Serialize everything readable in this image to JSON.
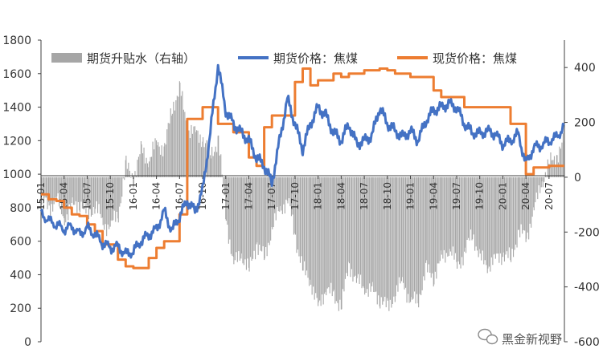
{
  "chart_data": {
    "type": "line",
    "legend": {
      "placement": "top",
      "entries": [
        "期货升贴水（右轴）",
        "期货价格：焦煤",
        "现货价格：焦煤"
      ]
    },
    "left_axis": {
      "ylim": [
        0,
        1800
      ],
      "ticks": [
        "0",
        "200",
        "400",
        "600",
        "800",
        "1000",
        "1200",
        "1400",
        "1600",
        "1800"
      ]
    },
    "right_axis": {
      "ylim": [
        -600,
        500
      ],
      "ticks": [
        "-600",
        "-400",
        "-200",
        "0",
        "200",
        "400"
      ]
    },
    "x_ticks": [
      "15-01",
      "15-04",
      "15-07",
      "15-10",
      "16-01",
      "16-04",
      "16-07",
      "16-10",
      "17-01",
      "17-04",
      "17-07",
      "17-10",
      "18-01",
      "18-04",
      "18-07",
      "18-10",
      "19-01",
      "19-04",
      "19-07",
      "19-10",
      "20-01",
      "20-04",
      "20-07"
    ],
    "x_range": [
      "2015-01",
      "2020-09"
    ],
    "colors": {
      "basis": "#a6a6a6",
      "futures": "#4472c4",
      "spot": "#ed7d31"
    },
    "series": [
      {
        "name": "期货升贴水（右轴）",
        "axis": "right",
        "style": "bar",
        "points": [
          [
            0,
            -80
          ],
          [
            1,
            -110
          ],
          [
            2,
            -80
          ],
          [
            3,
            -150
          ],
          [
            4,
            -110
          ],
          [
            5,
            -90
          ],
          [
            6,
            -140
          ],
          [
            7,
            -100
          ],
          [
            8,
            -170
          ],
          [
            9,
            -180
          ],
          [
            10,
            -130
          ],
          [
            11,
            40
          ],
          [
            12,
            0
          ],
          [
            13,
            100
          ],
          [
            14,
            60
          ],
          [
            15,
            130
          ],
          [
            16,
            100
          ],
          [
            17,
            260
          ],
          [
            18,
            320
          ],
          [
            19,
            180
          ],
          [
            20,
            160
          ],
          [
            21,
            140
          ],
          [
            22,
            80
          ],
          [
            23,
            140
          ],
          [
            24,
            -150
          ],
          [
            25,
            -320
          ],
          [
            26,
            -280
          ],
          [
            27,
            -340
          ],
          [
            28,
            -240
          ],
          [
            29,
            -300
          ],
          [
            30,
            -180
          ],
          [
            31,
            -120
          ],
          [
            32,
            -80
          ],
          [
            33,
            -220
          ],
          [
            34,
            -340
          ],
          [
            35,
            -380
          ],
          [
            36,
            -480
          ],
          [
            37,
            -400
          ],
          [
            38,
            -440
          ],
          [
            39,
            -460
          ],
          [
            40,
            -320
          ],
          [
            41,
            -380
          ],
          [
            42,
            -400
          ],
          [
            43,
            -420
          ],
          [
            44,
            -440
          ],
          [
            45,
            -480
          ],
          [
            46,
            -420
          ],
          [
            47,
            -380
          ],
          [
            48,
            -460
          ],
          [
            49,
            -440
          ],
          [
            50,
            -340
          ],
          [
            51,
            -360
          ],
          [
            52,
            -300
          ],
          [
            53,
            -260
          ],
          [
            54,
            -320
          ],
          [
            55,
            -280
          ],
          [
            56,
            -200
          ],
          [
            57,
            -300
          ],
          [
            58,
            -320
          ],
          [
            59,
            -300
          ],
          [
            60,
            -280
          ],
          [
            61,
            -300
          ],
          [
            62,
            -200
          ],
          [
            63,
            -220
          ],
          [
            64,
            -120
          ],
          [
            65,
            -20
          ],
          [
            66,
            50
          ],
          [
            67,
            80
          ],
          [
            68,
            140
          ]
        ]
      },
      {
        "name": "期货价格：焦煤",
        "axis": "left",
        "style": "line",
        "points": [
          [
            0,
            770
          ],
          [
            1,
            720
          ],
          [
            2,
            700
          ],
          [
            3,
            670
          ],
          [
            4,
            690
          ],
          [
            5,
            640
          ],
          [
            6,
            680
          ],
          [
            7,
            640
          ],
          [
            8,
            590
          ],
          [
            9,
            560
          ],
          [
            10,
            570
          ],
          [
            11,
            520
          ],
          [
            12,
            540
          ],
          [
            13,
            600
          ],
          [
            14,
            640
          ],
          [
            15,
            670
          ],
          [
            16,
            780
          ],
          [
            17,
            660
          ],
          [
            18,
            750
          ],
          [
            19,
            840
          ],
          [
            20,
            780
          ],
          [
            21,
            900
          ],
          [
            22,
            1250
          ],
          [
            23,
            1650
          ],
          [
            24,
            1380
          ],
          [
            25,
            1300
          ],
          [
            26,
            1250
          ],
          [
            27,
            1200
          ],
          [
            28,
            1100
          ],
          [
            29,
            1050
          ],
          [
            30,
            950
          ],
          [
            31,
            1200
          ],
          [
            32,
            1450
          ],
          [
            33,
            1300
          ],
          [
            34,
            1150
          ],
          [
            35,
            1300
          ],
          [
            36,
            1400
          ],
          [
            37,
            1350
          ],
          [
            38,
            1250
          ],
          [
            39,
            1200
          ],
          [
            40,
            1300
          ],
          [
            41,
            1180
          ],
          [
            42,
            1200
          ],
          [
            43,
            1230
          ],
          [
            44,
            1400
          ],
          [
            45,
            1300
          ],
          [
            46,
            1260
          ],
          [
            47,
            1220
          ],
          [
            48,
            1260
          ],
          [
            49,
            1200
          ],
          [
            50,
            1320
          ],
          [
            51,
            1380
          ],
          [
            52,
            1400
          ],
          [
            53,
            1420
          ],
          [
            54,
            1400
          ],
          [
            55,
            1300
          ],
          [
            56,
            1250
          ],
          [
            57,
            1240
          ],
          [
            58,
            1260
          ],
          [
            59,
            1240
          ],
          [
            60,
            1180
          ],
          [
            61,
            1200
          ],
          [
            62,
            1240
          ],
          [
            63,
            1060
          ],
          [
            64,
            1160
          ],
          [
            65,
            1170
          ],
          [
            66,
            1200
          ],
          [
            67,
            1220
          ],
          [
            68,
            1290
          ]
        ]
      },
      {
        "name": "现货价格：焦煤",
        "axis": "left",
        "style": "line",
        "points": [
          [
            0,
            880
          ],
          [
            1,
            850
          ],
          [
            2,
            840
          ],
          [
            3,
            800
          ],
          [
            4,
            760
          ],
          [
            5,
            750
          ],
          [
            6,
            700
          ],
          [
            7,
            660
          ],
          [
            8,
            580
          ],
          [
            9,
            580
          ],
          [
            10,
            490
          ],
          [
            11,
            450
          ],
          [
            12,
            440
          ],
          [
            13,
            440
          ],
          [
            14,
            500
          ],
          [
            15,
            560
          ],
          [
            16,
            600
          ],
          [
            17,
            600
          ],
          [
            18,
            760
          ],
          [
            19,
            1330
          ],
          [
            20,
            1330
          ],
          [
            21,
            1400
          ],
          [
            22,
            1400
          ],
          [
            23,
            1300
          ],
          [
            24,
            1300
          ],
          [
            25,
            1250
          ],
          [
            26,
            1250
          ],
          [
            27,
            1100
          ],
          [
            28,
            1050
          ],
          [
            29,
            1280
          ],
          [
            30,
            1350
          ],
          [
            31,
            1350
          ],
          [
            32,
            1350
          ],
          [
            33,
            1550
          ],
          [
            34,
            1630
          ],
          [
            35,
            1530
          ],
          [
            36,
            1560
          ],
          [
            37,
            1560
          ],
          [
            38,
            1600
          ],
          [
            39,
            1580
          ],
          [
            40,
            1600
          ],
          [
            41,
            1600
          ],
          [
            42,
            1620
          ],
          [
            43,
            1620
          ],
          [
            44,
            1630
          ],
          [
            45,
            1620
          ],
          [
            46,
            1600
          ],
          [
            47,
            1600
          ],
          [
            48,
            1580
          ],
          [
            49,
            1580
          ],
          [
            50,
            1580
          ],
          [
            51,
            1500
          ],
          [
            52,
            1460
          ],
          [
            53,
            1460
          ],
          [
            54,
            1460
          ],
          [
            55,
            1400
          ],
          [
            56,
            1400
          ],
          [
            57,
            1400
          ],
          [
            58,
            1400
          ],
          [
            59,
            1400
          ],
          [
            60,
            1400
          ],
          [
            61,
            1300
          ],
          [
            62,
            1300
          ],
          [
            63,
            1000
          ],
          [
            64,
            1040
          ],
          [
            65,
            1040
          ],
          [
            66,
            1050
          ],
          [
            67,
            1050
          ],
          [
            68,
            1050
          ]
        ]
      }
    ]
  },
  "watermark": {
    "text": "黑金新视野"
  }
}
